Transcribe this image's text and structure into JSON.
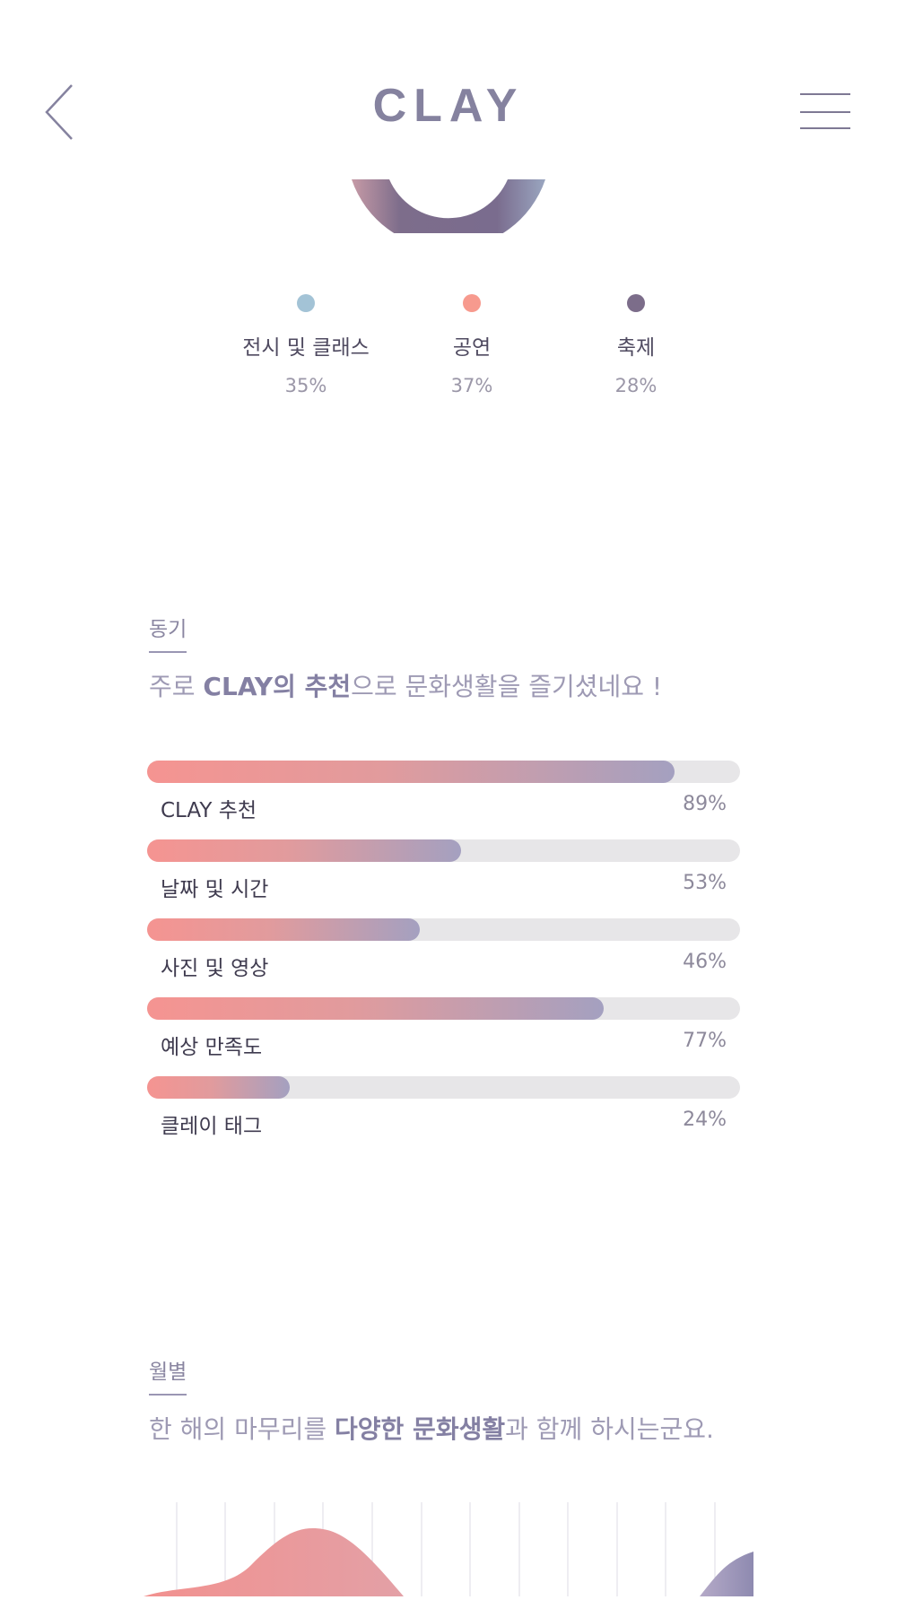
{
  "header": {
    "title": "CLAY"
  },
  "category_legend": [
    {
      "label": "전시 및 클래스",
      "percent": "35%",
      "color": "#a3c3d6"
    },
    {
      "label": "공연",
      "percent": "37%",
      "color": "#f79a8e"
    },
    {
      "label": "축제",
      "percent": "28%",
      "color": "#7c6d8a"
    }
  ],
  "motivation": {
    "tag": "동기",
    "headline_pre": "주로 ",
    "headline_bold": "CLAY의 추천",
    "headline_post": "으로 문화생활을 즐기셨네요 !",
    "bars": [
      {
        "label": "CLAY 추천",
        "value_text": "89%",
        "value": 0.89
      },
      {
        "label": "날짜 및 시간",
        "value_text": "53%",
        "value": 0.53
      },
      {
        "label": "사진 및 영상",
        "value_text": "46%",
        "value": 0.46
      },
      {
        "label": "예상 만족도",
        "value_text": "77%",
        "value": 0.77
      },
      {
        "label": "클레이 태그",
        "value_text": "24%",
        "value": 0.24
      }
    ]
  },
  "monthly": {
    "tag": "월별",
    "headline_pre": "한 해의 마무리를 ",
    "headline_bold": "다양한 문화생활",
    "headline_post": "과 함께 하시는군요."
  },
  "colors": {
    "accent": "#85829f",
    "bar_start": "#f59491",
    "bar_end": "#a4a0c0",
    "track": "#e7e6e8"
  }
}
